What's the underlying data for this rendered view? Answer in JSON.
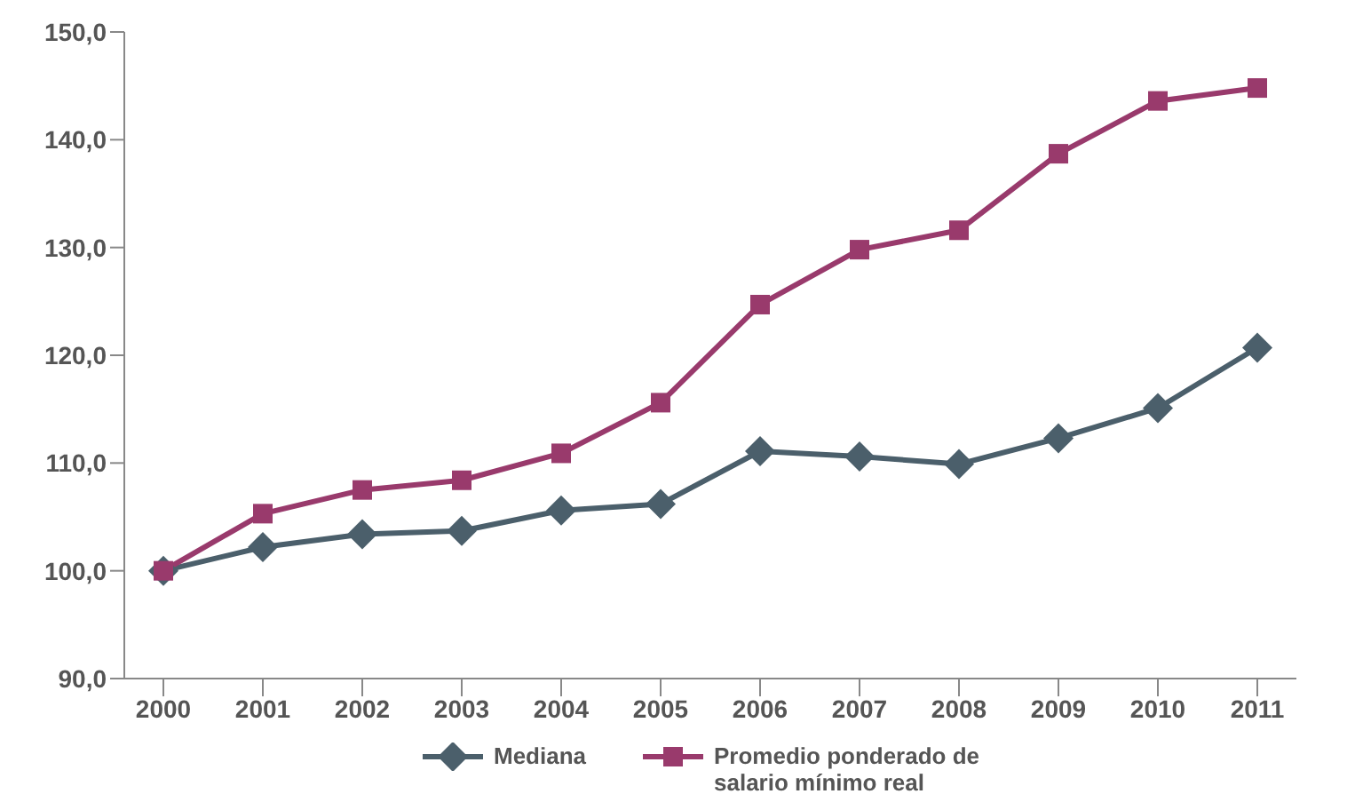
{
  "chart_data": {
    "type": "line",
    "categories": [
      "2000",
      "2001",
      "2002",
      "2003",
      "2004",
      "2005",
      "2006",
      "2007",
      "2008",
      "2009",
      "2010",
      "2011"
    ],
    "series": [
      {
        "name": "Mediana",
        "color": "#4b5f6b",
        "marker": "diamond",
        "values": [
          100,
          102.2,
          103.4,
          103.7,
          105.6,
          106.2,
          111.1,
          110.6,
          109.9,
          112.3,
          115.1,
          120.7
        ]
      },
      {
        "name": "Promedio ponderado de salario mínimo real",
        "color": "#993a6c",
        "marker": "square",
        "values": [
          100,
          105.3,
          107.5,
          108.4,
          110.9,
          115.6,
          124.7,
          129.8,
          131.6,
          138.7,
          143.6,
          144.8
        ]
      }
    ],
    "ylim": [
      90,
      150
    ],
    "yticks": [
      {
        "value": 90,
        "label": "90,0"
      },
      {
        "value": 100,
        "label": "100,0"
      },
      {
        "value": 110,
        "label": "110,0"
      },
      {
        "value": 120,
        "label": "120,0"
      },
      {
        "value": 130,
        "label": "130,0"
      },
      {
        "value": 140,
        "label": "140,0"
      },
      {
        "value": 150,
        "label": "150,0"
      }
    ],
    "grid": false,
    "legend": "bottom",
    "line_style": "solid"
  }
}
